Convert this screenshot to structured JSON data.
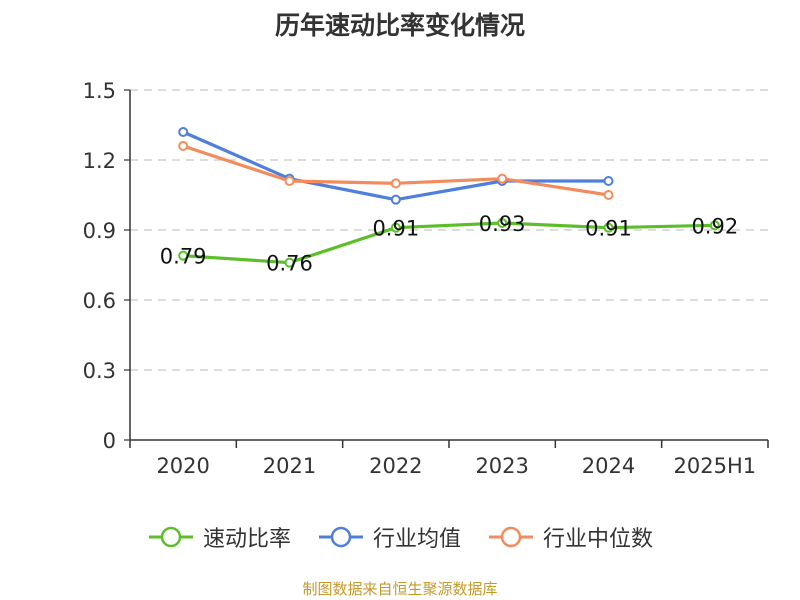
{
  "chart_data": {
    "type": "line",
    "title": "历年速动比率变化情况",
    "categories": [
      "2020",
      "2021",
      "2022",
      "2023",
      "2024",
      "2025H1"
    ],
    "y_ticks": [
      "0",
      "0.3",
      "0.6",
      "0.9",
      "1.2",
      "1.5"
    ],
    "ylim": [
      0,
      1.5
    ],
    "grid": true,
    "legend_position": "bottom",
    "series": [
      {
        "name": "速动比率",
        "color": "#5cbf2a",
        "values": [
          0.79,
          0.76,
          0.91,
          0.93,
          0.91,
          0.92
        ],
        "labels": [
          "0.79",
          "0.76",
          "0.91",
          "0.93",
          "0.91",
          "0.92"
        ]
      },
      {
        "name": "行业均值",
        "color": "#4f7fdb",
        "values": [
          1.32,
          1.12,
          1.03,
          1.11,
          1.11,
          null
        ]
      },
      {
        "name": "行业中位数",
        "color": "#f28c5c",
        "values": [
          1.26,
          1.11,
          1.1,
          1.12,
          1.05,
          null
        ]
      }
    ]
  },
  "source": "制图数据来自恒生聚源数据库"
}
